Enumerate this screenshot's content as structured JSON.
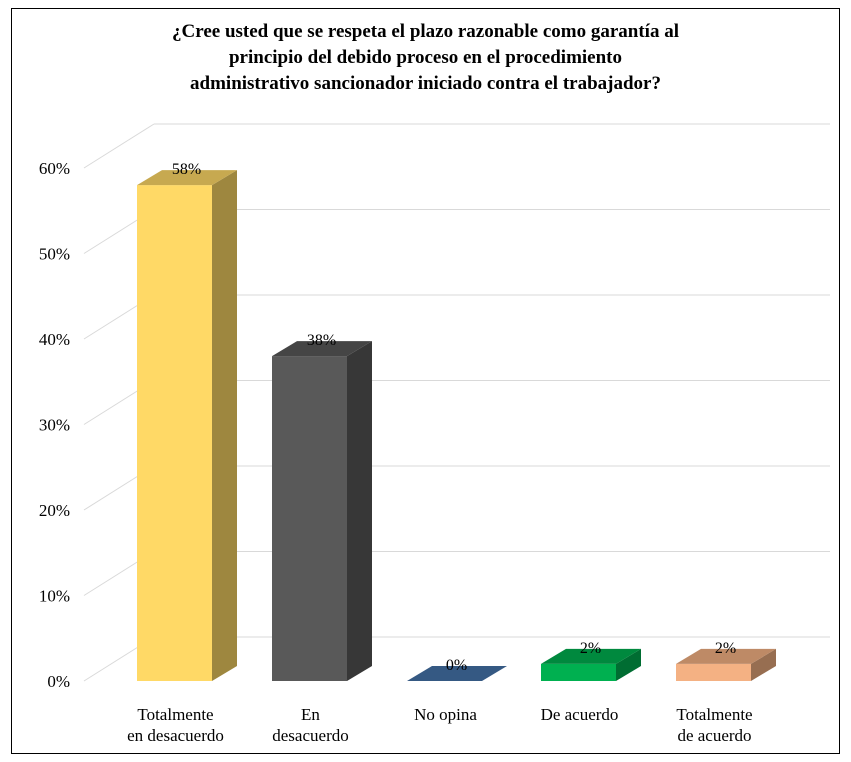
{
  "chart_data": {
    "type": "bar",
    "title": "¿Cree usted que se respeta el plazo razonable como garantía al\nprincipio del debido proceso en el procedimiento\nadministrativo sancionador iniciado contra el trabajador?",
    "categories": [
      [
        "Totalmente",
        "en desacuerdo"
      ],
      [
        "En",
        "desacuerdo"
      ],
      [
        "No opina"
      ],
      [
        "De acuerdo"
      ],
      [
        "Totalmente",
        "de acuerdo"
      ]
    ],
    "values": [
      58,
      38,
      0,
      2,
      2
    ],
    "data_labels": [
      "58%",
      "38%",
      "0%",
      "2%",
      "2%"
    ],
    "ylim": [
      0,
      60
    ],
    "yticks": [
      0,
      10,
      20,
      30,
      40,
      50,
      60
    ],
    "ytick_labels": [
      "0%",
      "10%",
      "20%",
      "30%",
      "40%",
      "50%",
      "60%"
    ],
    "grid": true,
    "colors": [
      "#FFD966",
      "#595959",
      "#4472A8",
      "#00B050",
      "#F4B183"
    ]
  }
}
